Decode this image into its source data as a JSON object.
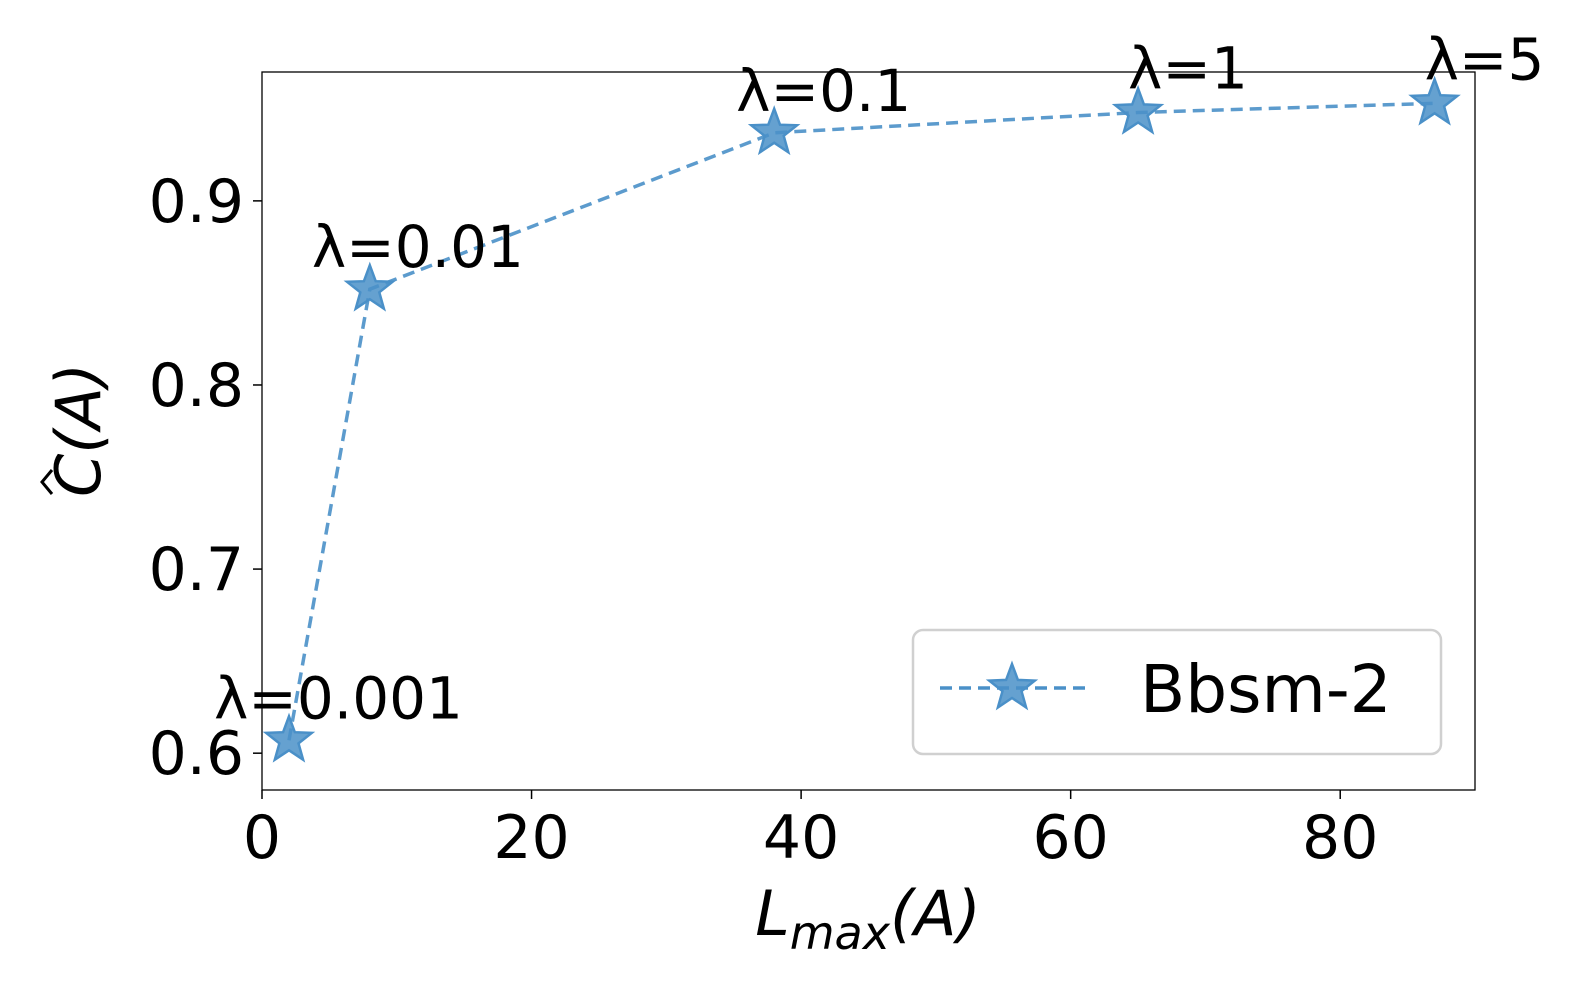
{
  "chart_data": {
    "type": "line",
    "title": "",
    "xlabel": "L_max(A)",
    "xlabel_parts": {
      "base": "L",
      "sub": "max",
      "tail": "(A)"
    },
    "ylabel": "Ĉ(A)",
    "ylabel_parts": {
      "base": "C",
      "tail": "(A)"
    },
    "xlim": [
      0,
      90
    ],
    "ylim": [
      0.58,
      0.97
    ],
    "xticks": [
      0,
      20,
      40,
      60,
      80
    ],
    "xtick_labels": [
      "0",
      "20",
      "40",
      "60",
      "80"
    ],
    "yticks": [
      0.6,
      0.7,
      0.8,
      0.9
    ],
    "ytick_labels": [
      "0.6",
      "0.7",
      "0.8",
      "0.9"
    ],
    "grid": false,
    "legend": {
      "position": "lower-right"
    },
    "series": [
      {
        "name": "Bbsm-2",
        "color": "#4a90c8",
        "line_style": "dashed",
        "marker": "star",
        "x": [
          2,
          8,
          38,
          65,
          87
        ],
        "y": [
          0.607,
          0.852,
          0.937,
          0.948,
          0.953
        ],
        "annotations": [
          "λ=0.001",
          "λ=0.01",
          "λ=0.1",
          "λ=1",
          "λ=5"
        ]
      }
    ]
  }
}
